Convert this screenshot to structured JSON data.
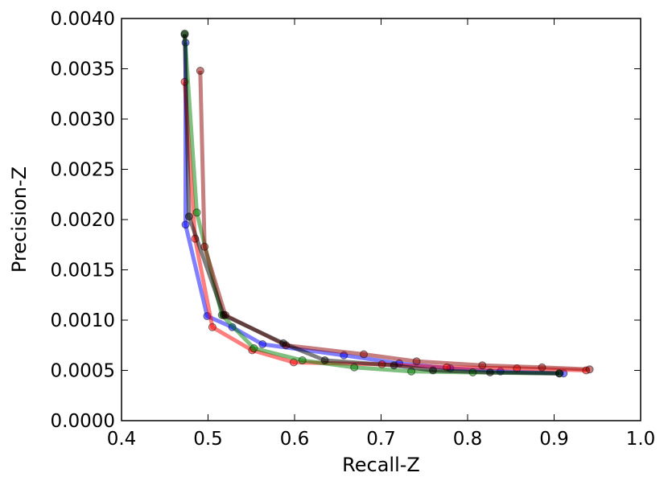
{
  "chart_data": {
    "type": "line",
    "xlabel": "Recall-Z",
    "ylabel": "Precision-Z",
    "xlim": [
      0.4,
      1.0
    ],
    "ylim": [
      0.0,
      0.004
    ],
    "xticks": [
      "0.4",
      "0.5",
      "0.6",
      "0.7",
      "0.8",
      "0.9",
      "1.0"
    ],
    "yticks": [
      "0.0000",
      "0.0005",
      "0.0010",
      "0.0015",
      "0.0020",
      "0.0025",
      "0.0030",
      "0.0035",
      "0.0040"
    ],
    "grid": false,
    "series": [
      {
        "color": "#0000ff",
        "x": [
          0.474,
          0.474,
          0.499,
          0.528,
          0.563,
          0.657,
          0.721,
          0.78,
          0.838,
          0.911
        ],
        "y": [
          0.00376,
          0.00195,
          0.00104,
          0.00093,
          0.00076,
          0.00065,
          0.00057,
          0.00052,
          0.00049,
          0.00047
        ]
      },
      {
        "color": "#ff0000",
        "x": [
          0.473,
          0.485,
          0.505,
          0.551,
          0.599,
          0.701,
          0.776,
          0.857,
          0.937
        ],
        "y": [
          0.00337,
          0.00181,
          0.00093,
          0.0007,
          0.00058,
          0.00056,
          0.00053,
          0.00052,
          0.0005
        ]
      },
      {
        "color": "#008000",
        "x": [
          0.473,
          0.487,
          0.516,
          0.553,
          0.609,
          0.669,
          0.735,
          0.806,
          0.906
        ],
        "y": [
          0.00385,
          0.00207,
          0.00105,
          0.00072,
          0.0006,
          0.00053,
          0.00049,
          0.00048,
          0.00047
        ]
      },
      {
        "color": "#8b0000",
        "x": [
          0.491,
          0.496,
          0.52,
          0.59,
          0.68,
          0.741,
          0.817,
          0.886,
          0.941
        ],
        "y": [
          0.00348,
          0.00173,
          0.00105,
          0.00075,
          0.00066,
          0.00059,
          0.00055,
          0.00053,
          0.00051
        ]
      },
      {
        "color": "#000000",
        "x": [
          0.473,
          0.478,
          0.518,
          0.587,
          0.635,
          0.715,
          0.76,
          0.826,
          0.906
        ],
        "y": [
          0.00384,
          0.00203,
          0.00105,
          0.00077,
          0.0006,
          0.00055,
          0.0005,
          0.00048,
          0.00047
        ]
      }
    ]
  }
}
